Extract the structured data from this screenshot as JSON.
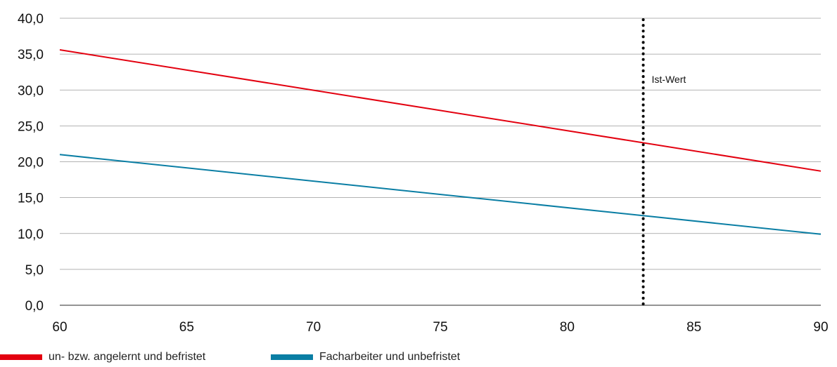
{
  "chart_data": {
    "type": "line",
    "title": "",
    "xlabel": "",
    "ylabel": "",
    "xlim": [
      60,
      90
    ],
    "ylim": [
      0,
      40
    ],
    "x_ticks": [
      60,
      65,
      70,
      75,
      80,
      85,
      90
    ],
    "x_tick_labels": [
      "60",
      "65",
      "70",
      "75",
      "80",
      "85",
      "90"
    ],
    "y_ticks": [
      0,
      5,
      10,
      15,
      20,
      25,
      30,
      35,
      40
    ],
    "y_tick_labels": [
      "0,0",
      "5,0",
      "10,0",
      "15,0",
      "20,0",
      "25,0",
      "30,0",
      "35,0",
      "40,0"
    ],
    "grid": "horizontal",
    "legend_position": "bottom-left",
    "series": [
      {
        "name": "un- bzw. angelernt und befristet",
        "color": "#e3000f",
        "x": [
          60,
          90
        ],
        "y": [
          35.6,
          18.7
        ]
      },
      {
        "name": "Facharbeiter und unbefristet",
        "color": "#0a7ea4",
        "x": [
          60,
          90
        ],
        "y": [
          21.0,
          9.9
        ]
      }
    ],
    "reference_line": {
      "x": 83,
      "label": "Ist-Wert",
      "style": "dotted",
      "color": "#000000"
    }
  }
}
